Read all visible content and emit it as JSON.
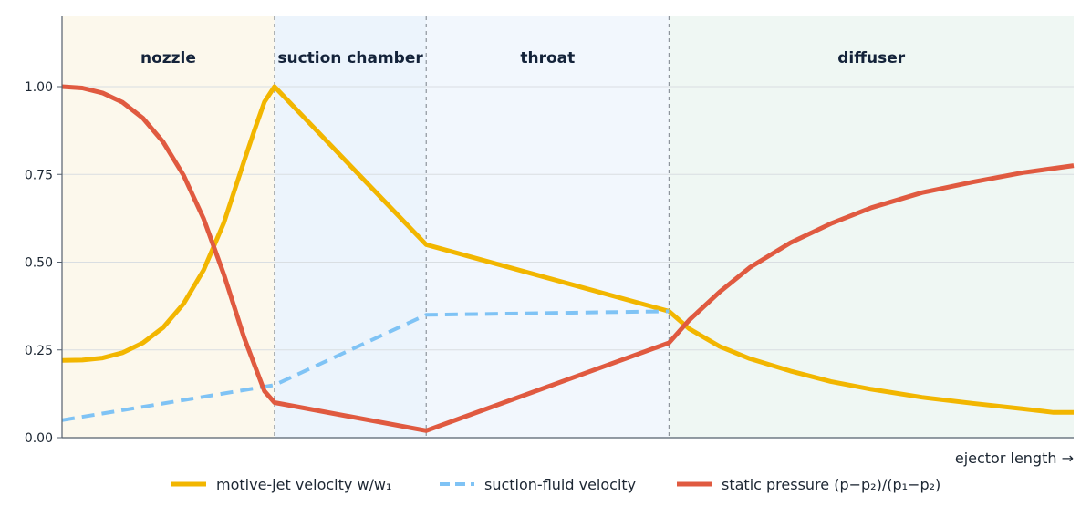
{
  "chart_data": {
    "type": "line",
    "xlabel": "ejector length →",
    "ylabel": "",
    "xlim": [
      0,
      1
    ],
    "ylim": [
      0,
      1.2
    ],
    "y_ticks": [
      0,
      0.25,
      0.5,
      0.75,
      1.0
    ],
    "y_tick_labels": [
      "0.00",
      "0.25",
      "0.50",
      "0.75",
      "1.00"
    ],
    "grid": "horizontal",
    "legend_placement": "bottom",
    "zones": [
      {
        "label": "nozzle",
        "x0": 0,
        "x1": 0.21,
        "color": "#fcf8ec"
      },
      {
        "label": "suction chamber",
        "x0": 0.21,
        "x1": 0.36,
        "color": "#ecf4fc"
      },
      {
        "label": "throat",
        "x0": 0.36,
        "x1": 0.6,
        "color": "#f2f7fd"
      },
      {
        "label": "diffuser",
        "x0": 0.6,
        "x1": 1.0,
        "color": "#eff7f3"
      }
    ],
    "boundaries": [
      0.21,
      0.36,
      0.6
    ],
    "series": [
      {
        "name": "motive-jet velocity  w/w₁",
        "color": "#f2b600",
        "dash": "solid",
        "x": [
          0,
          0.02,
          0.04,
          0.06,
          0.08,
          0.1,
          0.12,
          0.14,
          0.16,
          0.18,
          0.19,
          0.2,
          0.21,
          0.36,
          0.6,
          0.62,
          0.65,
          0.68,
          0.72,
          0.76,
          0.8,
          0.85,
          0.9,
          0.95,
          0.98,
          1.0
        ],
        "y": [
          0.22,
          0.221,
          0.227,
          0.242,
          0.27,
          0.314,
          0.381,
          0.478,
          0.612,
          0.788,
          0.874,
          0.956,
          1.0,
          0.55,
          0.36,
          0.31,
          0.26,
          0.225,
          0.19,
          0.16,
          0.138,
          0.115,
          0.098,
          0.082,
          0.072,
          0.072
        ]
      },
      {
        "name": "suction-fluid velocity",
        "color": "#7fc3f5",
        "dash": "dashed",
        "x": [
          0,
          0.21,
          0.36,
          0.6
        ],
        "y": [
          0.05,
          0.15,
          0.35,
          0.36
        ]
      },
      {
        "name": "static pressure  (p−p₂)/(p₁−p₂)",
        "color": "#e05a40",
        "dash": "solid",
        "x": [
          0,
          0.02,
          0.04,
          0.06,
          0.08,
          0.1,
          0.12,
          0.14,
          0.16,
          0.18,
          0.2,
          0.21,
          0.36,
          0.6,
          0.62,
          0.65,
          0.68,
          0.72,
          0.76,
          0.8,
          0.85,
          0.9,
          0.95,
          1.0
        ],
        "y": [
          1.0,
          0.996,
          0.982,
          0.955,
          0.91,
          0.842,
          0.748,
          0.623,
          0.465,
          0.285,
          0.133,
          0.1,
          0.02,
          0.27,
          0.335,
          0.415,
          0.485,
          0.555,
          0.61,
          0.655,
          0.698,
          0.728,
          0.755,
          0.775
        ]
      }
    ]
  }
}
